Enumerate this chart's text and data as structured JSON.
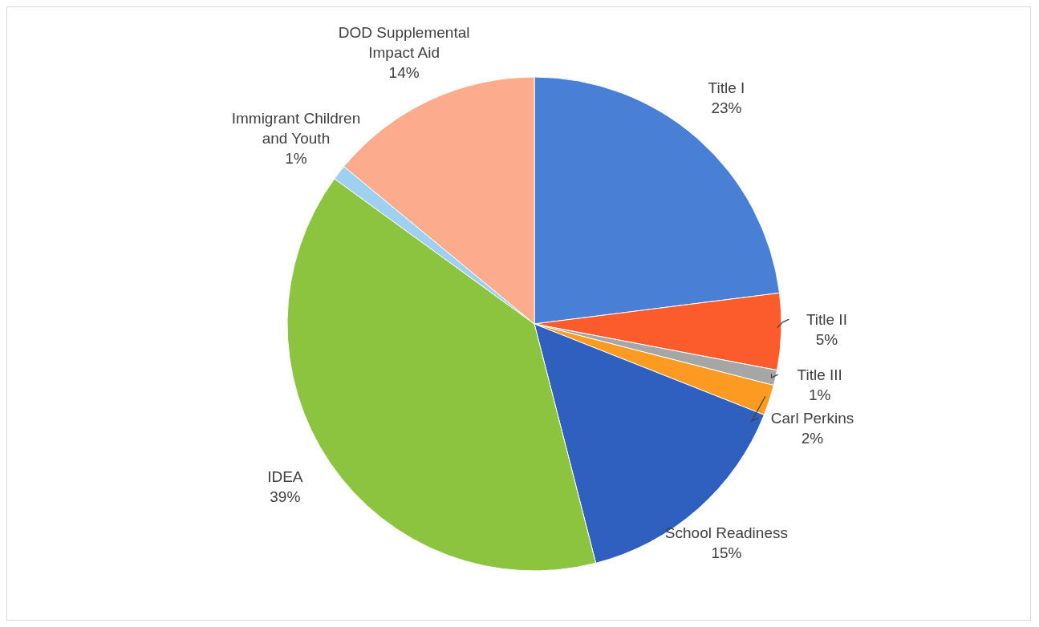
{
  "chart_data": {
    "type": "pie",
    "categories": [
      "Title I",
      "Title II",
      "Title III",
      "Carl Perkins",
      "School Readiness",
      "IDEA",
      "Immigrant Children and Youth",
      "DOD Supplemental Impact Aid"
    ],
    "values": [
      23,
      5,
      1,
      2,
      15,
      39,
      1,
      14
    ],
    "colors": [
      "#4a7fd6",
      "#fc5b2c",
      "#a6a6a6",
      "#fd9a22",
      "#2f5fbf",
      "#8cc43f",
      "#9fd0f0",
      "#fcab8c"
    ],
    "value_labels": [
      "23%",
      "5%",
      "1%",
      "2%",
      "15%",
      "39%",
      "1%",
      "14%"
    ]
  }
}
